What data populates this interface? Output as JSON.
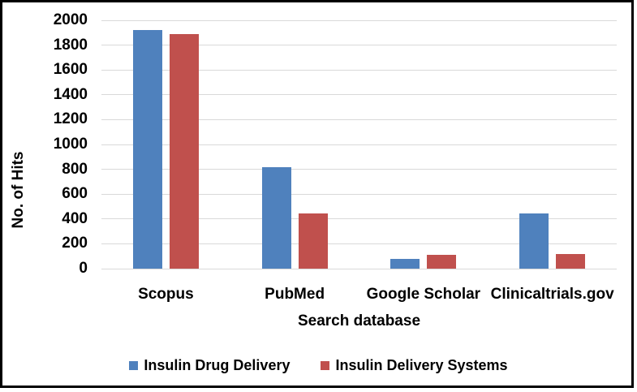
{
  "chart_data": {
    "type": "bar",
    "title": "",
    "categories": [
      "Scopus",
      "PubMed",
      "Google Scholar",
      "Clinicaltrials.gov"
    ],
    "series": [
      {
        "name": "Insulin Drug Delivery",
        "color": "#4F81BD",
        "values": [
          1920,
          820,
          80,
          445
        ]
      },
      {
        "name": "Insulin Delivery Systems",
        "color": "#C0504D",
        "values": [
          1890,
          445,
          110,
          120
        ]
      }
    ],
    "xlabel": "Search database",
    "ylabel": "No. of Hits",
    "ylim": [
      0,
      2000
    ],
    "ytick_step": 200,
    "grid": true,
    "gridline_color": "#D9D9D9",
    "legend_position": "bottom",
    "frame_color": "#000000",
    "background_color": "#FFFFFF"
  }
}
